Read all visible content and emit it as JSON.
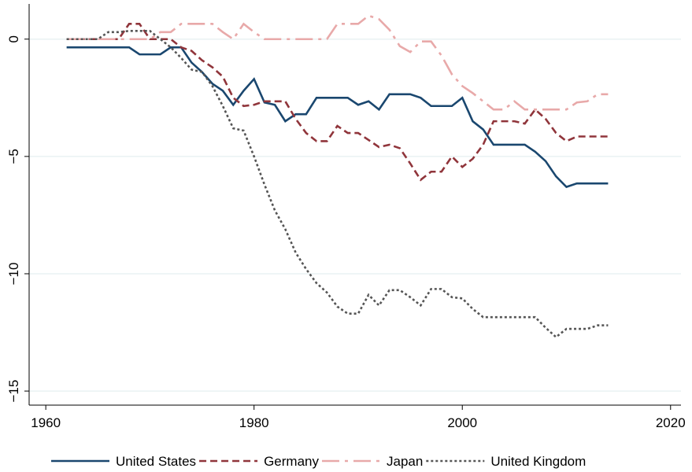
{
  "chart_data": {
    "type": "line",
    "x": [
      1962,
      1963,
      1964,
      1965,
      1966,
      1967,
      1968,
      1969,
      1970,
      1971,
      1972,
      1973,
      1974,
      1975,
      1976,
      1977,
      1978,
      1979,
      1980,
      1981,
      1982,
      1983,
      1984,
      1985,
      1986,
      1987,
      1988,
      1989,
      1990,
      1991,
      1992,
      1993,
      1994,
      1995,
      1996,
      1997,
      1998,
      1999,
      2000,
      2001,
      2002,
      2003,
      2004,
      2005,
      2006,
      2007,
      2008,
      2009,
      2010,
      2011,
      2012,
      2013,
      2014
    ],
    "series": [
      {
        "name": "United States",
        "color": "#1a476f",
        "dash": "solid",
        "values": [
          -0.35,
          -0.35,
          -0.35,
          -0.35,
          -0.35,
          -0.35,
          -0.35,
          -0.65,
          -0.65,
          -0.65,
          -0.35,
          -0.35,
          -1.0,
          -1.4,
          -1.9,
          -2.2,
          -2.8,
          -2.2,
          -1.7,
          -2.7,
          -2.8,
          -3.5,
          -3.2,
          -3.2,
          -2.5,
          -2.5,
          -2.5,
          -2.5,
          -2.8,
          -2.65,
          -3.0,
          -2.35,
          -2.35,
          -2.35,
          -2.5,
          -2.85,
          -2.85,
          -2.85,
          -2.5,
          -3.5,
          -3.85,
          -4.5,
          -4.5,
          -4.5,
          -4.5,
          -4.8,
          -5.2,
          -5.85,
          -6.3,
          -6.15,
          -6.15,
          -6.15,
          -6.15
        ]
      },
      {
        "name": "Germany",
        "color": "#90353b",
        "dash": "dash",
        "values": [
          0,
          0,
          0,
          0,
          0,
          0,
          0.65,
          0.65,
          0,
          0,
          0,
          -0.35,
          -0.5,
          -0.9,
          -1.2,
          -1.6,
          -2.5,
          -2.85,
          -2.8,
          -2.65,
          -2.65,
          -2.65,
          -3.4,
          -4.0,
          -4.35,
          -4.35,
          -3.7,
          -4.0,
          -4.0,
          -4.3,
          -4.6,
          -4.5,
          -4.65,
          -5.3,
          -6.0,
          -5.65,
          -5.65,
          -5.0,
          -5.45,
          -5.1,
          -4.5,
          -3.5,
          -3.5,
          -3.5,
          -3.6,
          -3.0,
          -3.4,
          -4.0,
          -4.35,
          -4.15,
          -4.15,
          -4.15,
          -4.15
        ]
      },
      {
        "name": "Japan",
        "color": "#e8a9a9",
        "dash": "longdash",
        "values": [
          0,
          0,
          0,
          0,
          0,
          0,
          0,
          0,
          0,
          0.3,
          0.3,
          0.65,
          0.65,
          0.65,
          0.65,
          0.3,
          0,
          0.65,
          0.3,
          0,
          0,
          0,
          0,
          0,
          0,
          0,
          0.65,
          0.65,
          0.65,
          1.0,
          0.85,
          0.4,
          -0.3,
          -0.55,
          -0.1,
          -0.1,
          -0.7,
          -1.5,
          -2.0,
          -2.3,
          -2.65,
          -3.0,
          -3.0,
          -2.65,
          -3.0,
          -3.0,
          -3.0,
          -3.0,
          -3.0,
          -2.7,
          -2.65,
          -2.35,
          -2.35
        ]
      },
      {
        "name": "United Kingdom",
        "color": "#555555",
        "dash": "dot",
        "values": [
          0,
          0,
          0,
          0,
          0.3,
          0.3,
          0.35,
          0.35,
          0.35,
          0,
          -0.35,
          -0.8,
          -1.3,
          -1.4,
          -2.0,
          -2.85,
          -3.8,
          -3.9,
          -5.0,
          -6.2,
          -7.3,
          -8.1,
          -9.1,
          -9.8,
          -10.4,
          -10.8,
          -11.4,
          -11.7,
          -11.7,
          -10.9,
          -11.35,
          -10.7,
          -10.7,
          -11.0,
          -11.35,
          -10.65,
          -10.65,
          -11.0,
          -11.05,
          -11.5,
          -11.85,
          -11.85,
          -11.85,
          -11.85,
          -11.85,
          -11.85,
          -12.3,
          -12.7,
          -12.35,
          -12.35,
          -12.35,
          -12.2,
          -12.2
        ]
      }
    ],
    "xlim": [
      1958.4,
      2021
    ],
    "ylim": [
      -15.6,
      1.5
    ],
    "xticks": [
      1960,
      1980,
      2000,
      2020
    ],
    "yticks": [
      {
        "value": -15,
        "label": "−15"
      },
      {
        "value": -10,
        "label": "−10"
      },
      {
        "value": -5,
        "label": "−5"
      },
      0
    ],
    "grid": true,
    "legend": "bottom"
  }
}
